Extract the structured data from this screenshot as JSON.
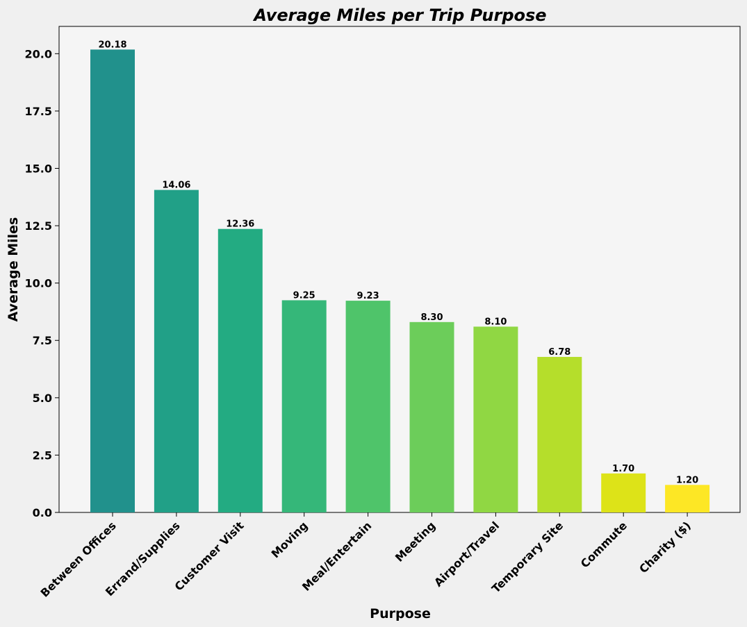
{
  "chart_data": {
    "type": "bar",
    "title": "Average Miles per Trip Purpose",
    "xlabel": "Purpose",
    "ylabel": "Average Miles",
    "categories": [
      "Between Offices",
      "Errand/Supplies",
      "Customer Visit",
      "Moving",
      "Meal/Entertain",
      "Meeting",
      "Airport/Travel",
      "Temporary Site",
      "Commute",
      "Charity ($)"
    ],
    "values": [
      20.18,
      14.06,
      12.36,
      9.25,
      9.23,
      8.3,
      8.1,
      6.78,
      1.7,
      1.2
    ],
    "value_labels": [
      "20.18",
      "14.06",
      "12.36",
      "9.25",
      "9.23",
      "8.30",
      "8.10",
      "6.78",
      "1.70",
      "1.20"
    ],
    "colors": [
      "#21918c",
      "#21a087",
      "#23ab82",
      "#35b779",
      "#4fc46a",
      "#6ccd5a",
      "#90d743",
      "#b5de2b",
      "#dde318",
      "#fde725"
    ],
    "yticks": [
      "0.0",
      "2.5",
      "5.0",
      "7.5",
      "10.0",
      "12.5",
      "15.0",
      "17.5",
      "20.0"
    ],
    "ylim": [
      0,
      21.19
    ],
    "grid": false,
    "legend": "none",
    "plot_background": "#f5f5f5",
    "figure_background": "#f0f0f0"
  }
}
